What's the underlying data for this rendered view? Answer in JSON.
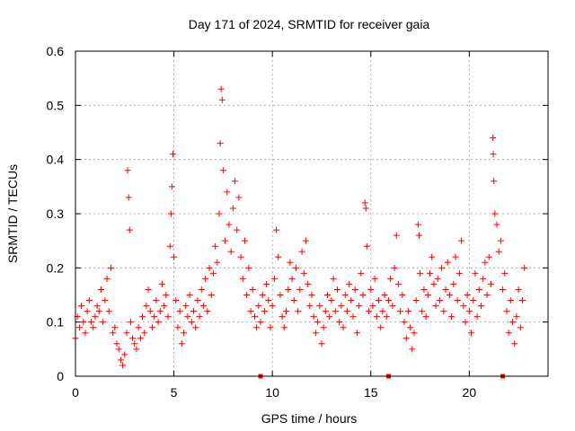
{
  "chart_data": {
    "type": "scatter",
    "title": "Day 171 of 2024, SRMTID for receiver gaia",
    "xlabel": "GPS time / hours",
    "ylabel": "SRMTID / TECUs",
    "xlim": [
      0,
      24
    ],
    "ylim": [
      0,
      0.6
    ],
    "xticks": [
      0,
      5,
      10,
      15,
      20
    ],
    "yticks": [
      0,
      0.1,
      0.2,
      0.3,
      0.4,
      0.5,
      0.6
    ],
    "xtick_labels": [
      "0",
      "5",
      "10",
      "15",
      "20"
    ],
    "ytick_labels": [
      "0",
      "0.1",
      "0.2",
      "0.3",
      "0.4",
      "0.5",
      "0.6"
    ],
    "grid": true,
    "marker": "+",
    "series_color": "#ff0000",
    "gap_markers_x": [
      9.4,
      15.9,
      21.7
    ],
    "series": [
      {
        "name": "SRMTID",
        "points": [
          [
            0.0,
            0.07
          ],
          [
            0.1,
            0.11
          ],
          [
            0.2,
            0.09
          ],
          [
            0.3,
            0.13
          ],
          [
            0.4,
            0.1
          ],
          [
            0.5,
            0.08
          ],
          [
            0.6,
            0.12
          ],
          [
            0.7,
            0.14
          ],
          [
            0.8,
            0.1
          ],
          [
            0.9,
            0.09
          ],
          [
            1.0,
            0.11
          ],
          [
            1.1,
            0.13
          ],
          [
            1.2,
            0.12
          ],
          [
            1.3,
            0.16
          ],
          [
            1.4,
            0.1
          ],
          [
            1.5,
            0.14
          ],
          [
            1.6,
            0.18
          ],
          [
            1.7,
            0.12
          ],
          [
            1.8,
            0.2
          ],
          [
            1.9,
            0.08
          ],
          [
            2.0,
            0.09
          ],
          [
            2.1,
            0.06
          ],
          [
            2.2,
            0.05
          ],
          [
            2.3,
            0.03
          ],
          [
            2.4,
            0.02
          ],
          [
            2.5,
            0.04
          ],
          [
            2.6,
            0.08
          ],
          [
            2.65,
            0.38
          ],
          [
            2.7,
            0.33
          ],
          [
            2.75,
            0.27
          ],
          [
            2.8,
            0.1
          ],
          [
            2.9,
            0.07
          ],
          [
            3.0,
            0.06
          ],
          [
            3.1,
            0.05
          ],
          [
            3.2,
            0.09
          ],
          [
            3.3,
            0.07
          ],
          [
            3.4,
            0.11
          ],
          [
            3.5,
            0.08
          ],
          [
            3.6,
            0.13
          ],
          [
            3.7,
            0.16
          ],
          [
            3.8,
            0.12
          ],
          [
            3.9,
            0.09
          ],
          [
            4.0,
            0.11
          ],
          [
            4.1,
            0.14
          ],
          [
            4.2,
            0.1
          ],
          [
            4.3,
            0.12
          ],
          [
            4.4,
            0.17
          ],
          [
            4.5,
            0.13
          ],
          [
            4.6,
            0.15
          ],
          [
            4.7,
            0.11
          ],
          [
            4.8,
            0.24
          ],
          [
            4.85,
            0.3
          ],
          [
            4.9,
            0.35
          ],
          [
            4.95,
            0.41
          ],
          [
            5.0,
            0.22
          ],
          [
            5.1,
            0.14
          ],
          [
            5.2,
            0.09
          ],
          [
            5.3,
            0.12
          ],
          [
            5.4,
            0.06
          ],
          [
            5.5,
            0.08
          ],
          [
            5.6,
            0.13
          ],
          [
            5.7,
            0.11
          ],
          [
            5.8,
            0.15
          ],
          [
            5.9,
            0.1
          ],
          [
            6.0,
            0.12
          ],
          [
            6.1,
            0.09
          ],
          [
            6.2,
            0.14
          ],
          [
            6.3,
            0.11
          ],
          [
            6.4,
            0.16
          ],
          [
            6.5,
            0.13
          ],
          [
            6.6,
            0.18
          ],
          [
            6.7,
            0.12
          ],
          [
            6.8,
            0.2
          ],
          [
            6.9,
            0.15
          ],
          [
            7.0,
            0.19
          ],
          [
            7.1,
            0.24
          ],
          [
            7.2,
            0.21
          ],
          [
            7.3,
            0.3
          ],
          [
            7.35,
            0.43
          ],
          [
            7.4,
            0.53
          ],
          [
            7.45,
            0.51
          ],
          [
            7.5,
            0.38
          ],
          [
            7.6,
            0.25
          ],
          [
            7.7,
            0.34
          ],
          [
            7.8,
            0.28
          ],
          [
            7.9,
            0.23
          ],
          [
            8.0,
            0.31
          ],
          [
            8.1,
            0.36
          ],
          [
            8.2,
            0.27
          ],
          [
            8.3,
            0.33
          ],
          [
            8.4,
            0.22
          ],
          [
            8.5,
            0.18
          ],
          [
            8.6,
            0.25
          ],
          [
            8.7,
            0.15
          ],
          [
            8.8,
            0.2
          ],
          [
            8.9,
            0.12
          ],
          [
            9.0,
            0.16
          ],
          [
            9.1,
            0.11
          ],
          [
            9.2,
            0.09
          ],
          [
            9.3,
            0.13
          ],
          [
            9.4,
            0.1
          ],
          [
            9.5,
            0.15
          ],
          [
            9.6,
            0.12
          ],
          [
            9.7,
            0.17
          ],
          [
            9.8,
            0.14
          ],
          [
            9.9,
            0.09
          ],
          [
            10.0,
            0.13
          ],
          [
            10.1,
            0.18
          ],
          [
            10.2,
            0.27
          ],
          [
            10.3,
            0.22
          ],
          [
            10.4,
            0.15
          ],
          [
            10.5,
            0.11
          ],
          [
            10.6,
            0.09
          ],
          [
            10.7,
            0.12
          ],
          [
            10.8,
            0.16
          ],
          [
            10.9,
            0.21
          ],
          [
            11.0,
            0.18
          ],
          [
            11.1,
            0.14
          ],
          [
            11.2,
            0.2
          ],
          [
            11.3,
            0.12
          ],
          [
            11.4,
            0.16
          ],
          [
            11.5,
            0.23
          ],
          [
            11.6,
            0.19
          ],
          [
            11.7,
            0.25
          ],
          [
            11.8,
            0.17
          ],
          [
            11.9,
            0.13
          ],
          [
            12.0,
            0.15
          ],
          [
            12.1,
            0.11
          ],
          [
            12.2,
            0.08
          ],
          [
            12.3,
            0.1
          ],
          [
            12.4,
            0.13
          ],
          [
            12.5,
            0.06
          ],
          [
            12.6,
            0.09
          ],
          [
            12.7,
            0.12
          ],
          [
            12.8,
            0.15
          ],
          [
            12.9,
            0.11
          ],
          [
            13.0,
            0.14
          ],
          [
            13.1,
            0.18
          ],
          [
            13.2,
            0.12
          ],
          [
            13.3,
            0.16
          ],
          [
            13.4,
            0.1
          ],
          [
            13.5,
            0.13
          ],
          [
            13.6,
            0.09
          ],
          [
            13.7,
            0.15
          ],
          [
            13.8,
            0.12
          ],
          [
            13.9,
            0.17
          ],
          [
            14.0,
            0.14
          ],
          [
            14.1,
            0.11
          ],
          [
            14.2,
            0.16
          ],
          [
            14.3,
            0.08
          ],
          [
            14.4,
            0.13
          ],
          [
            14.5,
            0.19
          ],
          [
            14.6,
            0.15
          ],
          [
            14.7,
            0.32
          ],
          [
            14.75,
            0.31
          ],
          [
            14.8,
            0.24
          ],
          [
            14.9,
            0.12
          ],
          [
            15.0,
            0.16
          ],
          [
            15.1,
            0.13
          ],
          [
            15.2,
            0.18
          ],
          [
            15.3,
            0.11
          ],
          [
            15.4,
            0.14
          ],
          [
            15.5,
            0.09
          ],
          [
            15.6,
            0.12
          ],
          [
            15.7,
            0.15
          ],
          [
            15.8,
            0.11
          ],
          [
            15.9,
            0.14
          ],
          [
            16.0,
            0.18
          ],
          [
            16.1,
            0.13
          ],
          [
            16.2,
            0.2
          ],
          [
            16.3,
            0.26
          ],
          [
            16.4,
            0.17
          ],
          [
            16.5,
            0.12
          ],
          [
            16.6,
            0.15
          ],
          [
            16.7,
            0.1
          ],
          [
            16.8,
            0.07
          ],
          [
            16.9,
            0.12
          ],
          [
            17.0,
            0.09
          ],
          [
            17.1,
            0.05
          ],
          [
            17.2,
            0.08
          ],
          [
            17.3,
            0.14
          ],
          [
            17.4,
            0.28
          ],
          [
            17.45,
            0.26
          ],
          [
            17.5,
            0.19
          ],
          [
            17.6,
            0.12
          ],
          [
            17.7,
            0.16
          ],
          [
            17.8,
            0.11
          ],
          [
            17.9,
            0.15
          ],
          [
            18.0,
            0.19
          ],
          [
            18.1,
            0.22
          ],
          [
            18.2,
            0.17
          ],
          [
            18.3,
            0.13
          ],
          [
            18.4,
            0.18
          ],
          [
            18.5,
            0.14
          ],
          [
            18.6,
            0.2
          ],
          [
            18.7,
            0.12
          ],
          [
            18.8,
            0.16
          ],
          [
            18.9,
            0.21
          ],
          [
            19.0,
            0.15
          ],
          [
            19.1,
            0.11
          ],
          [
            19.2,
            0.17
          ],
          [
            19.3,
            0.22
          ],
          [
            19.4,
            0.14
          ],
          [
            19.5,
            0.19
          ],
          [
            19.6,
            0.25
          ],
          [
            19.7,
            0.13
          ],
          [
            19.8,
            0.1
          ],
          [
            19.9,
            0.15
          ],
          [
            20.0,
            0.12
          ],
          [
            20.1,
            0.08
          ],
          [
            20.2,
            0.14
          ],
          [
            20.3,
            0.19
          ],
          [
            20.4,
            0.11
          ],
          [
            20.5,
            0.16
          ],
          [
            20.6,
            0.13
          ],
          [
            20.7,
            0.18
          ],
          [
            20.8,
            0.21
          ],
          [
            20.9,
            0.15
          ],
          [
            21.0,
            0.22
          ],
          [
            21.1,
            0.17
          ],
          [
            21.2,
            0.44
          ],
          [
            21.22,
            0.41
          ],
          [
            21.25,
            0.36
          ],
          [
            21.3,
            0.3
          ],
          [
            21.4,
            0.28
          ],
          [
            21.5,
            0.23
          ],
          [
            21.6,
            0.25
          ],
          [
            21.7,
            0.16
          ],
          [
            21.8,
            0.19
          ],
          [
            21.9,
            0.12
          ],
          [
            22.0,
            0.08
          ],
          [
            22.1,
            0.14
          ],
          [
            22.2,
            0.1
          ],
          [
            22.3,
            0.06
          ],
          [
            22.4,
            0.11
          ],
          [
            22.5,
            0.16
          ],
          [
            22.6,
            0.09
          ],
          [
            22.7,
            0.14
          ],
          [
            22.8,
            0.2
          ]
        ]
      }
    ]
  }
}
